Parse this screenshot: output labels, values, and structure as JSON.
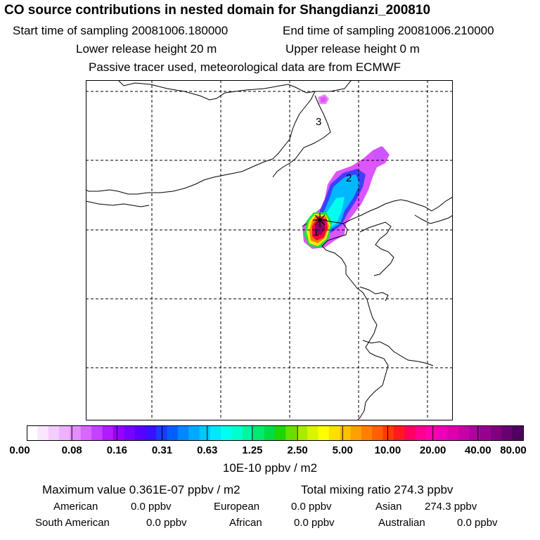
{
  "header": {
    "title": "CO  source contributions in nested domain for Shangdianzi_200810",
    "start_label": "Start time of sampling 20081006.180000",
    "end_label": "End time of sampling 20081006.210000",
    "lower_label": "Lower release height   20 m",
    "upper_label": "Upper release height    0 m",
    "tracer_note": "Passive tracer used, meteorological data are from ECMWF"
  },
  "map": {
    "contour_labels": [
      "3",
      "2",
      "1"
    ],
    "coast_color": "#000000",
    "grid_color": "#000000"
  },
  "colorbar": {
    "labels": [
      "0.00",
      "0.08",
      "0.16",
      "0.31",
      "0.63",
      "1.25",
      "2.50",
      "5.00",
      "10.00",
      "20.00",
      "40.00",
      "80.00"
    ],
    "units": "10E-10 ppbv / m2",
    "colors": [
      "#ffffff",
      "#fbe6ff",
      "#f5ccff",
      "#eeb0ff",
      "#e58cff",
      "#d966ff",
      "#c940ff",
      "#b21aff",
      "#9a00ff",
      "#7a00ff",
      "#5a00ff",
      "#3a10ff",
      "#1a3aff",
      "#0060ff",
      "#0088ff",
      "#00aaff",
      "#00c8ff",
      "#00e8ff",
      "#00ffee",
      "#00ffcc",
      "#00f5a0",
      "#00ea70",
      "#00dd44",
      "#22d400",
      "#66e000",
      "#a8ec00",
      "#d8f400",
      "#ffff00",
      "#ffe000",
      "#ffc000",
      "#ffa000",
      "#ff8000",
      "#ff6000",
      "#ff3a00",
      "#ff1a20",
      "#ff0060",
      "#ff0090",
      "#ff00b0",
      "#ee00b8",
      "#dd00b0",
      "#c800a8",
      "#b000a0",
      "#980090",
      "#800080",
      "#680070",
      "#500060"
    ]
  },
  "summary": {
    "max_label": "Maximum value  0.361E-07 ppbv / m2",
    "total_label": "Total mixing ratio     274.3 ppbv",
    "regions": [
      {
        "name": "American",
        "value": "0.0 ppbv"
      },
      {
        "name": "European",
        "value": "0.0 ppbv"
      },
      {
        "name": "Asian",
        "value": "274.3 ppbv"
      },
      {
        "name": "South American",
        "value": "0.0 ppbv"
      },
      {
        "name": "African",
        "value": "0.0 ppbv"
      },
      {
        "name": "Australian",
        "value": "0.0 ppbv"
      }
    ]
  }
}
